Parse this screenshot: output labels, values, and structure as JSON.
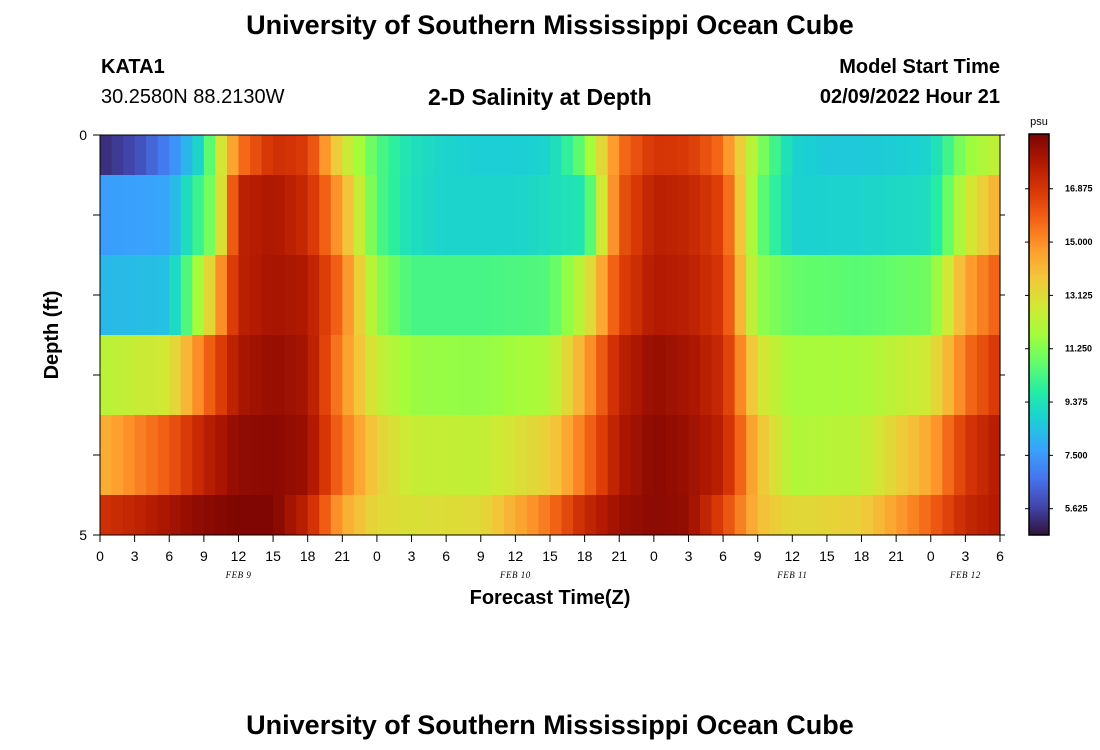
{
  "header": {
    "title": "University of Southern Mississippi Ocean Cube",
    "station": "KATA1",
    "coords": "30.2580N  88.2130W",
    "subtitle": "2-D Salinity at Depth",
    "model_start_label": "Model Start Time",
    "model_start_value": "02/09/2022 Hour 21"
  },
  "footer": {
    "title": "University of Southern Mississippi Ocean Cube"
  },
  "chart_data": {
    "type": "heatmap",
    "title": "2-D Salinity at Depth",
    "xlabel": "Forecast Time(Z)",
    "ylabel": "Depth (ft)",
    "x_ticks": [
      "0",
      "3",
      "6",
      "9",
      "12",
      "15",
      "18",
      "21",
      "0",
      "3",
      "6",
      "9",
      "12",
      "15",
      "18",
      "21",
      "0",
      "3",
      "6",
      "9",
      "12",
      "15",
      "18",
      "21",
      "0",
      "3",
      "6"
    ],
    "date_labels": [
      {
        "hour_index": 12,
        "label": "FEB 9"
      },
      {
        "hour_index": 36,
        "label": "FEB 10"
      },
      {
        "hour_index": 60,
        "label": "FEB 11"
      },
      {
        "hour_index": 75,
        "label": "FEB 12"
      }
    ],
    "x_range_hours": [
      0,
      78
    ],
    "y_ticks": [
      "0",
      "",
      "",
      "",
      "",
      "5"
    ],
    "ylim": [
      0,
      5
    ],
    "colorbar": {
      "unit": "psu",
      "min": 4.7,
      "max": 18.8,
      "labels": [
        "16.875",
        "15.000",
        "13.125",
        "11.250",
        "9.375",
        "7.500",
        "5.625"
      ],
      "colors": [
        "#30123b",
        "#4145ab",
        "#4675ed",
        "#39a2fc",
        "#1bcfd4",
        "#24eca6",
        "#61fc6c",
        "#a4fc3b",
        "#d1e834",
        "#f3c63a",
        "#fe9b2d",
        "#f36315",
        "#d93806",
        "#b11901",
        "#7a0403"
      ]
    },
    "depth_layers": [
      "0-0.5 ft",
      "0.5-1.5 ft",
      "1.5-2.5 ft",
      "2.5-3.5 ft",
      "3.5-4.5 ft",
      "4.5-5 ft"
    ],
    "series": [
      {
        "name": "0-0.5 ft",
        "times": [
          0,
          3,
          6,
          9,
          10,
          12,
          15,
          18,
          21,
          24,
          27,
          30,
          33,
          36,
          39,
          42,
          45,
          48,
          51,
          54,
          57,
          60,
          63,
          66,
          69,
          72,
          75,
          78
        ],
        "values": [
          5.2,
          5.8,
          7.0,
          9.3,
          12.0,
          15.4,
          17.1,
          16.7,
          13.0,
          10.5,
          9.3,
          8.9,
          8.7,
          8.7,
          8.9,
          11.0,
          15.5,
          16.9,
          16.8,
          15.5,
          11.5,
          8.9,
          8.6,
          8.6,
          8.7,
          8.9,
          11.5,
          12.5
        ]
      },
      {
        "name": "0.5-1.5 ft",
        "times": [
          0,
          6,
          10,
          12,
          15,
          18,
          21,
          24,
          27,
          30,
          36,
          42,
          45,
          48,
          51,
          54,
          57,
          60,
          66,
          72,
          75,
          78
        ],
        "values": [
          7.6,
          7.8,
          11.5,
          17.5,
          17.9,
          17.2,
          14.5,
          10.5,
          9.2,
          8.9,
          8.9,
          9.5,
          16.0,
          17.6,
          17.4,
          16.5,
          11.0,
          8.8,
          8.9,
          9.2,
          12.5,
          14.5
        ]
      },
      {
        "name": "1.5-2.5 ft",
        "times": [
          0,
          6,
          9,
          12,
          15,
          18,
          21,
          24,
          27,
          33,
          39,
          42,
          45,
          48,
          51,
          54,
          57,
          60,
          66,
          72,
          75,
          78
        ],
        "values": [
          8.2,
          8.4,
          12.5,
          17.5,
          18.0,
          17.8,
          15.5,
          11.5,
          10.3,
          10.3,
          10.5,
          12.5,
          16.5,
          17.8,
          17.6,
          16.8,
          11.5,
          10.8,
          10.6,
          11.0,
          14.5,
          16.0
        ]
      },
      {
        "name": "2.5-3.5 ft",
        "times": [
          0,
          6,
          9,
          12,
          15,
          18,
          21,
          24,
          27,
          33,
          39,
          42,
          45,
          48,
          51,
          54,
          57,
          60,
          66,
          72,
          75,
          78
        ],
        "values": [
          12.2,
          12.8,
          15.5,
          17.9,
          18.3,
          18.0,
          15.0,
          12.5,
          11.6,
          11.5,
          12.0,
          14.5,
          17.5,
          18.3,
          18.0,
          17.2,
          13.0,
          11.8,
          11.9,
          12.8,
          15.5,
          17.0
        ]
      },
      {
        "name": "3.5-4.5 ft",
        "times": [
          0,
          6,
          9,
          12,
          15,
          18,
          21,
          24,
          27,
          33,
          39,
          42,
          45,
          48,
          51,
          54,
          57,
          60,
          66,
          72,
          75,
          78
        ],
        "values": [
          14.2,
          16.0,
          17.5,
          18.4,
          18.5,
          18.2,
          15.5,
          13.5,
          12.5,
          12.4,
          13.5,
          15.5,
          17.8,
          18.5,
          18.2,
          17.5,
          14.0,
          12.0,
          12.3,
          14.5,
          16.8,
          17.8
        ]
      },
      {
        "name": "4.5-5 ft",
        "times": [
          0,
          3,
          6,
          9,
          12,
          15,
          18,
          21,
          24,
          27,
          33,
          39,
          42,
          45,
          48,
          51,
          54,
          57,
          60,
          66,
          72,
          75,
          78
        ],
        "values": [
          17.0,
          17.4,
          18.0,
          18.5,
          18.7,
          18.7,
          17.4,
          14.5,
          13.2,
          13.0,
          13.2,
          15.5,
          17.3,
          18.2,
          18.5,
          18.3,
          16.5,
          14.0,
          13.2,
          13.5,
          15.8,
          17.3,
          17.8
        ]
      }
    ]
  }
}
